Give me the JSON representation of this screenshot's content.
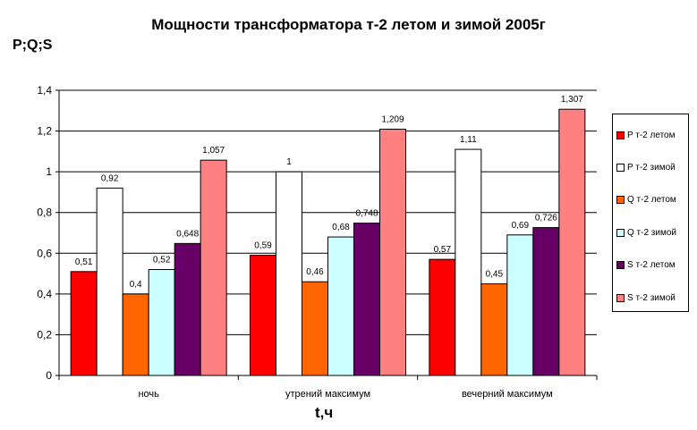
{
  "chart_data": {
    "type": "bar",
    "title": "Мощности трансформатора т-2 летом и зимой 2005г",
    "ylabel": "P;Q;S",
    "xlabel": "t,ч",
    "categories": [
      "ночь",
      "утрений максимум",
      "вечерний максимум"
    ],
    "ylim": [
      0,
      1.4
    ],
    "yticks": [
      "0",
      "0,2",
      "0,4",
      "0,6",
      "0,8",
      "1",
      "1,2",
      "1,4"
    ],
    "grid": true,
    "legend_position": "right",
    "series": [
      {
        "name": "P т-2 летом",
        "color": "#ff0000",
        "values": [
          0.51,
          0.59,
          0.57
        ],
        "labels": [
          "0,51",
          "0,59",
          "0,57"
        ]
      },
      {
        "name": "P т-2 зимой",
        "color": "#ffffff",
        "values": [
          0.92,
          1.0,
          1.11
        ],
        "labels": [
          "0,92",
          "1",
          "1,11"
        ]
      },
      {
        "name": "Q т-2 летом",
        "color": "#ff6600",
        "values": [
          0.4,
          0.46,
          0.45
        ],
        "labels": [
          "0,4",
          "0,46",
          "0,45"
        ]
      },
      {
        "name": "Q т-2 зимой",
        "color": "#ccffff",
        "values": [
          0.52,
          0.68,
          0.69
        ],
        "labels": [
          "0,52",
          "0,68",
          "0,69"
        ]
      },
      {
        "name": "S т-2 летом",
        "color": "#660066",
        "values": [
          0.648,
          0.748,
          0.726
        ],
        "labels": [
          "0,648",
          "0,748",
          "0,726"
        ]
      },
      {
        "name": "S т-2 зимой",
        "color": "#ff8080",
        "values": [
          1.057,
          1.209,
          1.307
        ],
        "labels": [
          "1,057",
          "1,209",
          "1,307"
        ]
      }
    ]
  }
}
